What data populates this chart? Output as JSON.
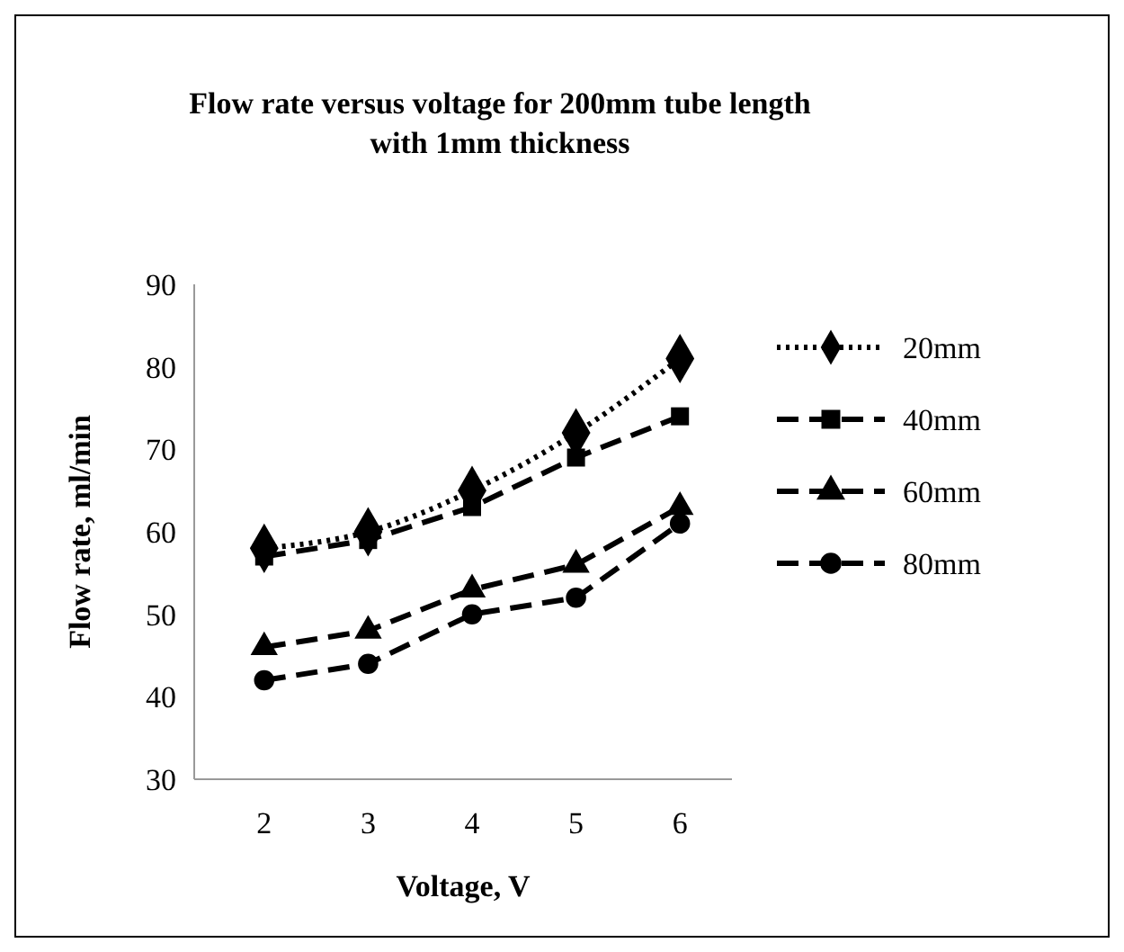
{
  "chart_data": {
    "type": "line",
    "title": "Flow rate versus voltage for 200mm tube length with 1mm thickness",
    "xlabel": "Voltage, V",
    "ylabel": "Flow rate, ml/min",
    "categories": [
      "2",
      "3",
      "4",
      "5",
      "6"
    ],
    "series": [
      {
        "name": "20mm",
        "color": "#000000",
        "marker": "diamond",
        "line_style": "dotted",
        "values": [
          58,
          60,
          65,
          72,
          81
        ]
      },
      {
        "name": "40mm",
        "color": "#000000",
        "marker": "square",
        "line_style": "dashed",
        "values": [
          57,
          59,
          63,
          69,
          74
        ]
      },
      {
        "name": "60mm",
        "color": "#000000",
        "marker": "triangle",
        "line_style": "dashed",
        "values": [
          46,
          48,
          53,
          56,
          63
        ]
      },
      {
        "name": "80mm",
        "color": "#000000",
        "marker": "circle",
        "line_style": "dashed",
        "values": [
          42,
          44,
          50,
          52,
          61
        ]
      }
    ],
    "ylim": [
      30,
      90
    ],
    "yticks": [
      30,
      40,
      50,
      60,
      70,
      80,
      90
    ],
    "grid": false,
    "legend": "right"
  }
}
